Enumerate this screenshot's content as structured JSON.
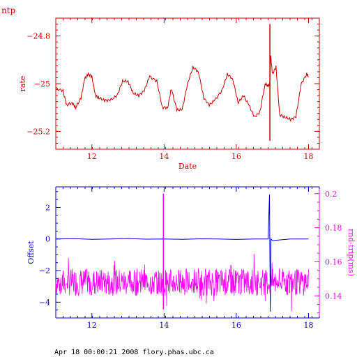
{
  "page": {
    "title": "ntp",
    "footer": "Apr 18 00:00:21 2008 flory.phas.ubc.ca"
  },
  "chart_data": [
    {
      "type": "line",
      "ylabel": "rate",
      "xlabel": "Date",
      "xlim": [
        11,
        18.3
      ],
      "ylim": [
        -25.275,
        -24.725
      ],
      "x_ticks": [
        12,
        14,
        16,
        18
      ],
      "y_ticks": [
        -24.8,
        -25,
        -25.2
      ],
      "y_tick_labels": [
        "−24.8",
        "−25",
        "−25.2"
      ],
      "x_tick_labels": [
        "12",
        "14",
        "16",
        "18"
      ],
      "color": "#cc0000",
      "series": [
        {
          "x": [
            11.0,
            11.2,
            11.3,
            11.45,
            11.55,
            11.7,
            11.8,
            11.9,
            12.0,
            12.1,
            12.2,
            12.35,
            12.5,
            12.7,
            12.85,
            13.0,
            13.15,
            13.3,
            13.45,
            13.6,
            13.8,
            13.95,
            14.1,
            14.2,
            14.35,
            14.5,
            14.65,
            14.8,
            14.95,
            15.1,
            15.25,
            15.4,
            15.6,
            15.75,
            15.9,
            16.05,
            16.2,
            16.35,
            16.5,
            16.65,
            16.8,
            16.88,
            16.93,
            16.95,
            17.0,
            17.1,
            17.2,
            17.35,
            17.5,
            17.65,
            17.8,
            17.95,
            18.0
          ],
          "y": [
            -25.02,
            -25.03,
            -25.09,
            -25.08,
            -25.1,
            -25.06,
            -24.98,
            -24.96,
            -24.97,
            -25.05,
            -25.06,
            -25.07,
            -25.07,
            -25.05,
            -24.99,
            -24.99,
            -25.04,
            -25.05,
            -25.03,
            -24.97,
            -24.99,
            -25.1,
            -25.1,
            -25.02,
            -25.11,
            -25.11,
            -25.0,
            -24.93,
            -24.95,
            -25.06,
            -25.09,
            -25.07,
            -25.03,
            -24.96,
            -24.98,
            -25.08,
            -25.05,
            -25.09,
            -25.14,
            -25.12,
            -25.0,
            -25.01,
            -25.0,
            -24.88,
            -24.96,
            -24.93,
            -25.13,
            -25.14,
            -25.15,
            -25.14,
            -25.0,
            -24.96,
            -24.97
          ]
        }
      ],
      "spike": {
        "x": 16.93,
        "ymin": -25.24,
        "ymax": -24.75
      }
    },
    {
      "type": "line",
      "xlim": [
        11,
        18.3
      ],
      "x_ticks": [
        12,
        14,
        16,
        18
      ],
      "x_tick_labels": [
        "12",
        "14",
        "16",
        "18"
      ],
      "left_axis": {
        "label": "Offset",
        "color": "#0000cc",
        "ylim": [
          -5,
          3.3
        ],
        "ticks": [
          2,
          0,
          -2,
          -4
        ],
        "tick_labels": [
          "2",
          "0",
          "−2",
          "−4"
        ]
      },
      "right_axis": {
        "label": "rnd-trip(ms)",
        "color": "#ff00ff",
        "ylim": [
          0.127,
          0.204
        ],
        "ticks": [
          0.2,
          0.18,
          0.16,
          0.14
        ],
        "tick_labels": [
          "0.2",
          "0.18",
          "0.16",
          "0.14"
        ]
      },
      "series": [
        {
          "name": "Offset",
          "axis": "left",
          "color": "#0000cc",
          "x": [
            11.0,
            11.5,
            12.0,
            12.5,
            13.0,
            13.5,
            14.0,
            14.5,
            15.0,
            15.5,
            16.0,
            16.5,
            16.88,
            16.9,
            16.92,
            16.94,
            16.96,
            17.0,
            17.5,
            18.0
          ],
          "y": [
            0.0,
            0.02,
            -0.02,
            0.0,
            0.03,
            -0.01,
            0.0,
            -0.02,
            0.01,
            0.0,
            -0.03,
            0.0,
            0.0,
            1.4,
            2.8,
            -4.6,
            0.0,
            -0.1,
            0.0,
            0.0
          ]
        },
        {
          "name": "rnd-trip(ms)",
          "axis": "right",
          "color": "#ff00ff",
          "x_start": 11.0,
          "x_end": 18.0,
          "baseline": 0.148,
          "amplitude": 0.008,
          "spikes": [
            {
              "x": 13.98,
              "ymin": 0.132,
              "ymax": 0.2
            },
            {
              "x": 15.85,
              "ymin": 0.142,
              "ymax": 0.158
            }
          ]
        }
      ]
    }
  ]
}
